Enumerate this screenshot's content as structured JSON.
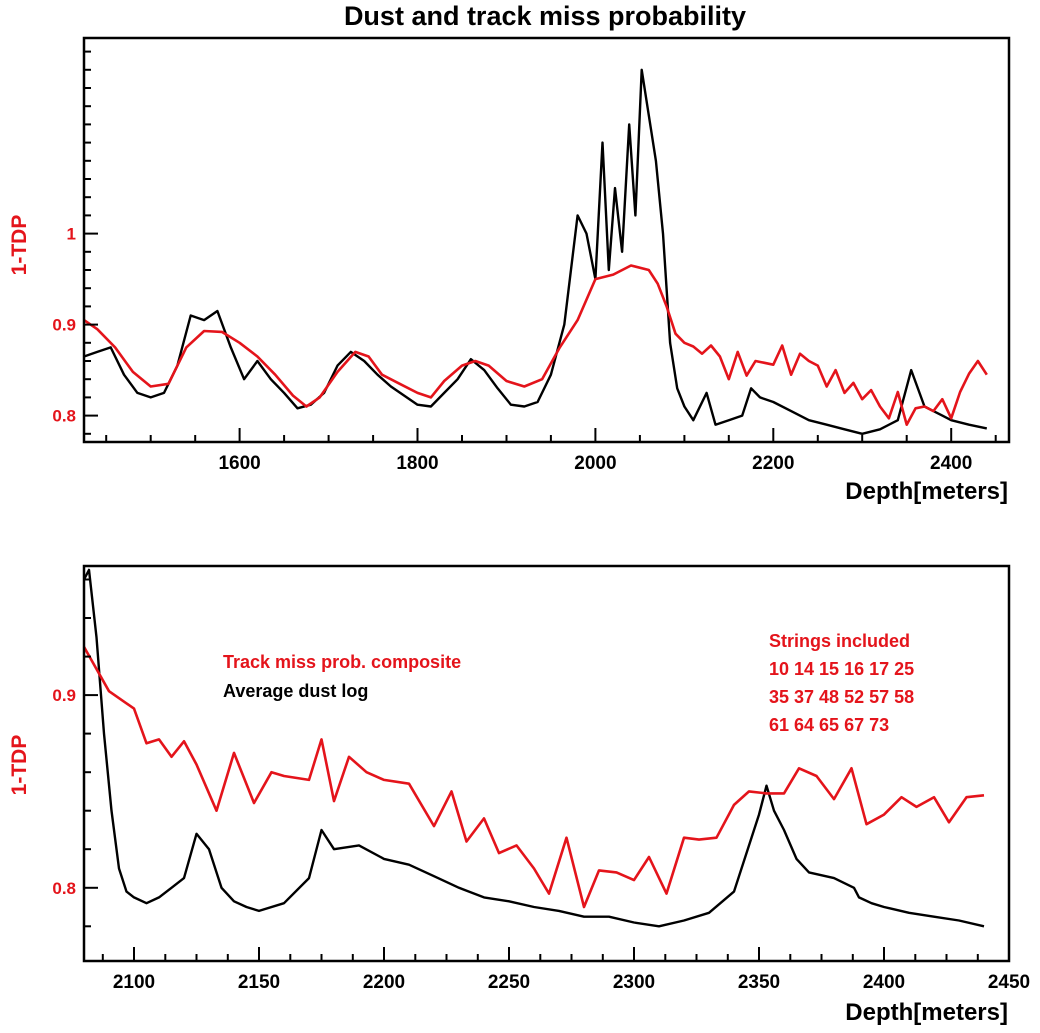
{
  "colors": {
    "track": "#e4141b",
    "dust": "#000000",
    "axis_label": "#e4141b",
    "frame": "#000000"
  },
  "chart_data": [
    {
      "type": "line",
      "title": "Dust and track miss probability",
      "xlabel": "Depth[meters]",
      "ylabel": "1-TDP",
      "xlim": [
        1425,
        2465
      ],
      "ylim": [
        0.771,
        1.215
      ],
      "xticks": [
        1600,
        1800,
        2000,
        2200,
        2400
      ],
      "yticks": [
        0.8,
        0.9,
        1
      ],
      "ytick_labels": [
        "0.8",
        "0.9",
        "1"
      ],
      "grid": false,
      "series": [
        {
          "name": "Track miss prob. composite",
          "color": "#e4141b",
          "x": [
            1425,
            1440,
            1460,
            1480,
            1500,
            1520,
            1540,
            1560,
            1580,
            1600,
            1620,
            1640,
            1660,
            1675,
            1690,
            1710,
            1730,
            1745,
            1760,
            1780,
            1800,
            1815,
            1830,
            1850,
            1865,
            1880,
            1900,
            1920,
            1940,
            1960,
            1980,
            2000,
            2020,
            2040,
            2060,
            2070,
            2080,
            2090,
            2100,
            2110,
            2120,
            2130,
            2140,
            2150,
            2160,
            2170,
            2180,
            2190,
            2200,
            2210,
            2220,
            2230,
            2240,
            2250,
            2260,
            2270,
            2280,
            2290,
            2300,
            2310,
            2320,
            2330,
            2340,
            2350,
            2360,
            2370,
            2380,
            2390,
            2400,
            2410,
            2420,
            2430,
            2440
          ],
          "y": [
            0.905,
            0.895,
            0.875,
            0.848,
            0.832,
            0.835,
            0.875,
            0.893,
            0.892,
            0.88,
            0.865,
            0.845,
            0.822,
            0.81,
            0.82,
            0.848,
            0.87,
            0.865,
            0.845,
            0.835,
            0.825,
            0.82,
            0.838,
            0.855,
            0.86,
            0.855,
            0.838,
            0.832,
            0.84,
            0.875,
            0.905,
            0.95,
            0.955,
            0.965,
            0.96,
            0.945,
            0.92,
            0.89,
            0.88,
            0.876,
            0.868,
            0.877,
            0.865,
            0.84,
            0.87,
            0.844,
            0.86,
            0.858,
            0.856,
            0.877,
            0.845,
            0.868,
            0.86,
            0.855,
            0.832,
            0.85,
            0.825,
            0.836,
            0.818,
            0.828,
            0.81,
            0.797,
            0.826,
            0.79,
            0.808,
            0.81,
            0.805,
            0.818,
            0.797,
            0.826,
            0.846,
            0.86,
            0.845
          ]
        },
        {
          "name": "Average dust log",
          "color": "#000000",
          "x": [
            1425,
            1440,
            1455,
            1470,
            1485,
            1500,
            1515,
            1530,
            1545,
            1560,
            1575,
            1590,
            1605,
            1620,
            1635,
            1650,
            1665,
            1680,
            1695,
            1710,
            1725,
            1740,
            1755,
            1770,
            1785,
            1800,
            1815,
            1830,
            1845,
            1860,
            1875,
            1890,
            1905,
            1920,
            1935,
            1950,
            1965,
            1980,
            1990,
            2000,
            2008,
            2015,
            2022,
            2030,
            2038,
            2045,
            2052,
            2060,
            2068,
            2076,
            2084,
            2092,
            2100,
            2110,
            2125,
            2135,
            2150,
            2165,
            2175,
            2185,
            2200,
            2220,
            2240,
            2260,
            2280,
            2300,
            2320,
            2340,
            2355,
            2370,
            2380,
            2390,
            2400,
            2420,
            2440
          ],
          "y": [
            0.865,
            0.87,
            0.875,
            0.845,
            0.825,
            0.82,
            0.825,
            0.855,
            0.91,
            0.905,
            0.915,
            0.875,
            0.84,
            0.86,
            0.84,
            0.825,
            0.808,
            0.812,
            0.825,
            0.855,
            0.87,
            0.86,
            0.845,
            0.832,
            0.822,
            0.812,
            0.81,
            0.825,
            0.84,
            0.862,
            0.85,
            0.83,
            0.812,
            0.81,
            0.815,
            0.845,
            0.9,
            1.02,
            1.0,
            0.95,
            1.1,
            0.96,
            1.05,
            0.98,
            1.12,
            1.02,
            1.18,
            1.13,
            1.08,
            1.0,
            0.88,
            0.83,
            0.81,
            0.795,
            0.825,
            0.79,
            0.795,
            0.8,
            0.83,
            0.82,
            0.815,
            0.805,
            0.795,
            0.79,
            0.785,
            0.78,
            0.785,
            0.795,
            0.85,
            0.81,
            0.805,
            0.8,
            0.795,
            0.79,
            0.786
          ]
        }
      ]
    },
    {
      "type": "line",
      "xlabel": "Depth[meters]",
      "ylabel": "1-TDP",
      "xlim": [
        2080,
        2450
      ],
      "ylim": [
        0.762,
        0.967
      ],
      "xticks": [
        2100,
        2150,
        2200,
        2250,
        2300,
        2350,
        2400,
        2450
      ],
      "yticks": [
        0.8,
        0.9
      ],
      "ytick_labels": [
        "0.8",
        "0.9"
      ],
      "grid": false,
      "legend": [
        "Track miss prob. composite",
        "Average dust log"
      ],
      "annotation": [
        "Strings included",
        "10 14 15 16 17 25",
        "35 37 48 52 57 58",
        "61 64 65 67 73"
      ],
      "series": [
        {
          "name": "Track miss prob. composite",
          "color": "#e4141b",
          "x": [
            2080,
            2090,
            2100,
            2105,
            2110,
            2115,
            2120,
            2125,
            2133,
            2140,
            2148,
            2155,
            2160,
            2170,
            2175,
            2180,
            2186,
            2193,
            2200,
            2210,
            2220,
            2227,
            2233,
            2240,
            2246,
            2253,
            2260,
            2266,
            2273,
            2280,
            2286,
            2293,
            2300,
            2306,
            2313,
            2320,
            2326,
            2333,
            2340,
            2346,
            2353,
            2360,
            2366,
            2373,
            2380,
            2387,
            2393,
            2400,
            2407,
            2413,
            2420,
            2426,
            2433,
            2440
          ],
          "y": [
            0.925,
            0.902,
            0.893,
            0.875,
            0.877,
            0.868,
            0.876,
            0.864,
            0.84,
            0.87,
            0.844,
            0.86,
            0.858,
            0.856,
            0.877,
            0.845,
            0.868,
            0.86,
            0.856,
            0.854,
            0.832,
            0.85,
            0.824,
            0.836,
            0.818,
            0.822,
            0.81,
            0.797,
            0.826,
            0.79,
            0.809,
            0.808,
            0.804,
            0.816,
            0.797,
            0.826,
            0.825,
            0.826,
            0.843,
            0.85,
            0.849,
            0.849,
            0.862,
            0.858,
            0.846,
            0.862,
            0.833,
            0.838,
            0.847,
            0.842,
            0.847,
            0.834,
            0.847,
            0.848
          ]
        },
        {
          "name": "Average dust log",
          "color": "#000000",
          "x": [
            2080,
            2082,
            2085,
            2088,
            2091,
            2094,
            2097,
            2100,
            2105,
            2110,
            2115,
            2120,
            2125,
            2130,
            2135,
            2140,
            2145,
            2150,
            2160,
            2170,
            2175,
            2180,
            2190,
            2200,
            2210,
            2220,
            2230,
            2240,
            2250,
            2260,
            2270,
            2280,
            2290,
            2300,
            2310,
            2320,
            2330,
            2340,
            2345,
            2350,
            2353,
            2356,
            2360,
            2365,
            2370,
            2380,
            2388,
            2390,
            2395,
            2400,
            2410,
            2420,
            2430,
            2440
          ],
          "y": [
            0.96,
            0.965,
            0.93,
            0.88,
            0.84,
            0.81,
            0.798,
            0.795,
            0.792,
            0.795,
            0.8,
            0.805,
            0.828,
            0.82,
            0.8,
            0.793,
            0.79,
            0.788,
            0.792,
            0.805,
            0.83,
            0.82,
            0.822,
            0.815,
            0.812,
            0.806,
            0.8,
            0.795,
            0.793,
            0.79,
            0.788,
            0.785,
            0.785,
            0.782,
            0.78,
            0.783,
            0.787,
            0.798,
            0.818,
            0.838,
            0.853,
            0.84,
            0.83,
            0.815,
            0.808,
            0.805,
            0.8,
            0.795,
            0.792,
            0.79,
            0.787,
            0.785,
            0.783,
            0.78
          ]
        }
      ]
    }
  ]
}
